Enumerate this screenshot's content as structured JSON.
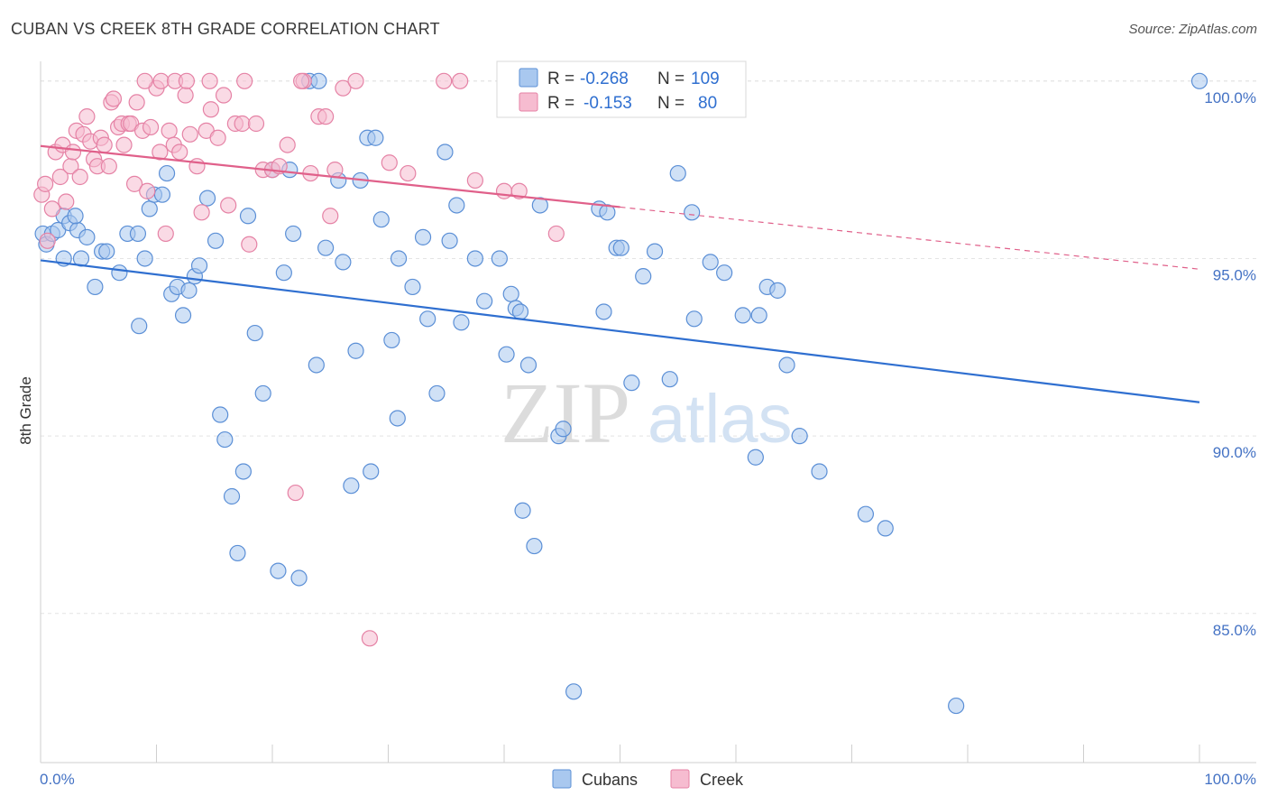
{
  "header": {
    "title": "CUBAN VS CREEK 8TH GRADE CORRELATION CHART",
    "source": "Source: ZipAtlas.com"
  },
  "watermark": {
    "zip": "ZIP",
    "atlas": "atlas"
  },
  "legend": {
    "r_label": "R =",
    "n_label": "N =",
    "rows": [
      {
        "r": "-0.268",
        "n": "109",
        "color": "#a9c8ef",
        "stroke": "#5b8fd6"
      },
      {
        "r": "-0.153",
        "n": "80",
        "color": "#f6bcd0",
        "stroke": "#e582a5"
      }
    ]
  },
  "bottom_legend": [
    {
      "label": "Cubans",
      "color": "#a9c8ef",
      "stroke": "#5b8fd6"
    },
    {
      "label": "Creek",
      "color": "#f6bcd0",
      "stroke": "#e582a5"
    }
  ],
  "chart_data": {
    "type": "scatter",
    "title": "CUBAN VS CREEK 8TH GRADE CORRELATION CHART",
    "xlabel": "",
    "ylabel": "8th Grade",
    "xlim": [
      0,
      100
    ],
    "ylim": [
      80.8,
      100.3
    ],
    "x_tick_labels": [
      "0.0%",
      "100.0%"
    ],
    "y_ticks": [
      85,
      90,
      95,
      100
    ],
    "y_tick_labels": [
      "85.0%",
      "90.0%",
      "95.0%",
      "100.0%"
    ],
    "grid": true,
    "legend_position": "top-center",
    "series": [
      {
        "name": "Cubans",
        "color": "#5b8fd6",
        "fill": "#a9c8ef",
        "trend": {
          "x": [
            0,
            100
          ],
          "y": [
            94.95,
            90.95
          ],
          "style": "solid",
          "color": "#2f6fd0"
        },
        "points": [
          [
            0.2,
            95.7
          ],
          [
            0.5,
            95.4
          ],
          [
            1.0,
            95.7
          ],
          [
            1.5,
            95.8
          ],
          [
            2.0,
            96.2
          ],
          [
            2.5,
            96.0
          ],
          [
            3.2,
            95.8
          ],
          [
            3.5,
            95.0
          ],
          [
            4.0,
            95.6
          ],
          [
            4.7,
            94.2
          ],
          [
            5.3,
            95.2
          ],
          [
            5.7,
            95.2
          ],
          [
            6.8,
            94.6
          ],
          [
            7.5,
            95.7
          ],
          [
            8.4,
            95.7
          ],
          [
            8.5,
            93.1
          ],
          [
            9.0,
            95.0
          ],
          [
            9.4,
            96.4
          ],
          [
            9.8,
            96.8
          ],
          [
            10.5,
            96.8
          ],
          [
            10.9,
            97.4
          ],
          [
            11.3,
            94.0
          ],
          [
            11.8,
            94.2
          ],
          [
            12.3,
            93.4
          ],
          [
            12.8,
            94.1
          ],
          [
            13.3,
            94.5
          ],
          [
            13.7,
            94.8
          ],
          [
            14.4,
            96.7
          ],
          [
            15.1,
            95.5
          ],
          [
            15.5,
            90.6
          ],
          [
            15.9,
            89.9
          ],
          [
            16.5,
            88.3
          ],
          [
            17.0,
            86.7
          ],
          [
            17.5,
            89.0
          ],
          [
            17.9,
            96.2
          ],
          [
            18.5,
            92.9
          ],
          [
            19.2,
            91.2
          ],
          [
            20.0,
            97.5
          ],
          [
            20.5,
            86.2
          ],
          [
            21.0,
            94.6
          ],
          [
            21.5,
            97.5
          ],
          [
            21.8,
            95.7
          ],
          [
            22.3,
            86.0
          ],
          [
            23.2,
            100.0
          ],
          [
            24.0,
            100.0
          ],
          [
            23.8,
            92.0
          ],
          [
            24.6,
            95.3
          ],
          [
            25.7,
            97.2
          ],
          [
            26.1,
            94.9
          ],
          [
            26.8,
            88.6
          ],
          [
            27.2,
            92.4
          ],
          [
            27.6,
            97.2
          ],
          [
            28.2,
            98.4
          ],
          [
            28.5,
            89.0
          ],
          [
            28.9,
            98.4
          ],
          [
            29.4,
            96.1
          ],
          [
            30.3,
            92.7
          ],
          [
            30.8,
            90.5
          ],
          [
            30.9,
            95.0
          ],
          [
            32.1,
            94.2
          ],
          [
            33.0,
            95.6
          ],
          [
            33.4,
            93.3
          ],
          [
            34.2,
            91.2
          ],
          [
            34.9,
            98.0
          ],
          [
            35.3,
            95.5
          ],
          [
            35.9,
            96.5
          ],
          [
            36.3,
            93.2
          ],
          [
            37.5,
            95.0
          ],
          [
            38.3,
            93.8
          ],
          [
            39.6,
            95.0
          ],
          [
            40.2,
            92.3
          ],
          [
            40.6,
            94.0
          ],
          [
            41.0,
            93.6
          ],
          [
            41.4,
            93.5
          ],
          [
            41.6,
            87.9
          ],
          [
            42.1,
            92.0
          ],
          [
            42.6,
            86.9
          ],
          [
            43.1,
            96.5
          ],
          [
            44.7,
            90.0
          ],
          [
            45.1,
            90.2
          ],
          [
            46.0,
            82.8
          ],
          [
            48.2,
            96.4
          ],
          [
            48.6,
            93.5
          ],
          [
            48.9,
            96.3
          ],
          [
            49.7,
            95.3
          ],
          [
            50.1,
            95.3
          ],
          [
            51.0,
            91.5
          ],
          [
            52.0,
            94.5
          ],
          [
            53.0,
            95.2
          ],
          [
            54.3,
            91.6
          ],
          [
            55.0,
            97.4
          ],
          [
            56.2,
            96.3
          ],
          [
            56.4,
            93.3
          ],
          [
            57.8,
            94.9
          ],
          [
            59.0,
            94.6
          ],
          [
            60.6,
            93.4
          ],
          [
            61.7,
            89.4
          ],
          [
            62.0,
            93.4
          ],
          [
            62.7,
            94.2
          ],
          [
            63.6,
            94.1
          ],
          [
            64.4,
            92.0
          ],
          [
            65.5,
            90.0
          ],
          [
            67.2,
            89.0
          ],
          [
            71.2,
            87.8
          ],
          [
            72.9,
            87.4
          ],
          [
            79.0,
            82.4
          ],
          [
            100.0,
            100.0
          ],
          [
            2.0,
            95.0
          ],
          [
            3.0,
            96.2
          ]
        ]
      },
      {
        "name": "Creek",
        "color": "#e582a5",
        "fill": "#f6bcd0",
        "trend": {
          "x": [
            0,
            50
          ],
          "y": [
            98.17,
            96.45
          ],
          "extend_to": [
            100,
            94.7
          ],
          "style": "solid-then-dashed",
          "color": "#e0608a"
        },
        "points": [
          [
            0.1,
            96.8
          ],
          [
            0.4,
            97.1
          ],
          [
            0.6,
            95.5
          ],
          [
            1.0,
            96.4
          ],
          [
            1.3,
            98.0
          ],
          [
            1.7,
            97.3
          ],
          [
            1.9,
            98.2
          ],
          [
            2.2,
            96.6
          ],
          [
            2.6,
            97.6
          ],
          [
            2.8,
            98.0
          ],
          [
            3.1,
            98.6
          ],
          [
            3.4,
            97.3
          ],
          [
            3.7,
            98.5
          ],
          [
            4.0,
            99.0
          ],
          [
            4.3,
            98.3
          ],
          [
            4.6,
            97.8
          ],
          [
            4.9,
            97.6
          ],
          [
            5.2,
            98.4
          ],
          [
            5.5,
            98.2
          ],
          [
            5.9,
            97.6
          ],
          [
            6.1,
            99.4
          ],
          [
            6.3,
            99.5
          ],
          [
            6.7,
            98.7
          ],
          [
            7.0,
            98.8
          ],
          [
            7.2,
            98.2
          ],
          [
            7.6,
            98.8
          ],
          [
            7.8,
            98.8
          ],
          [
            8.1,
            97.1
          ],
          [
            8.3,
            99.4
          ],
          [
            8.8,
            98.6
          ],
          [
            9.2,
            96.9
          ],
          [
            9.5,
            98.7
          ],
          [
            10.0,
            99.8
          ],
          [
            10.3,
            98.0
          ],
          [
            10.8,
            95.7
          ],
          [
            11.1,
            98.6
          ],
          [
            11.5,
            98.2
          ],
          [
            12.0,
            98.0
          ],
          [
            12.5,
            99.6
          ],
          [
            12.9,
            98.5
          ],
          [
            13.5,
            97.6
          ],
          [
            13.9,
            96.3
          ],
          [
            14.3,
            98.6
          ],
          [
            14.7,
            99.2
          ],
          [
            15.3,
            98.4
          ],
          [
            15.8,
            99.6
          ],
          [
            16.2,
            96.5
          ],
          [
            16.8,
            98.8
          ],
          [
            17.4,
            98.8
          ],
          [
            18.0,
            95.4
          ],
          [
            18.6,
            98.8
          ],
          [
            19.2,
            97.5
          ],
          [
            20.0,
            97.5
          ],
          [
            20.6,
            97.6
          ],
          [
            21.3,
            98.2
          ],
          [
            22.0,
            88.4
          ],
          [
            22.7,
            100.0
          ],
          [
            23.3,
            97.4
          ],
          [
            24.0,
            99.0
          ],
          [
            24.6,
            99.0
          ],
          [
            25.4,
            97.5
          ],
          [
            26.1,
            99.8
          ],
          [
            27.2,
            100.0
          ],
          [
            28.4,
            84.3
          ],
          [
            30.1,
            97.7
          ],
          [
            31.7,
            97.4
          ],
          [
            34.8,
            100.0
          ],
          [
            36.2,
            100.0
          ],
          [
            37.5,
            97.2
          ],
          [
            40.0,
            96.9
          ],
          [
            41.3,
            96.9
          ],
          [
            44.5,
            95.7
          ],
          [
            9.0,
            100.0
          ],
          [
            10.4,
            100.0
          ],
          [
            11.6,
            100.0
          ],
          [
            12.6,
            100.0
          ],
          [
            14.6,
            100.0
          ],
          [
            17.6,
            100.0
          ],
          [
            22.5,
            100.0
          ],
          [
            25.0,
            96.2
          ]
        ]
      }
    ]
  }
}
